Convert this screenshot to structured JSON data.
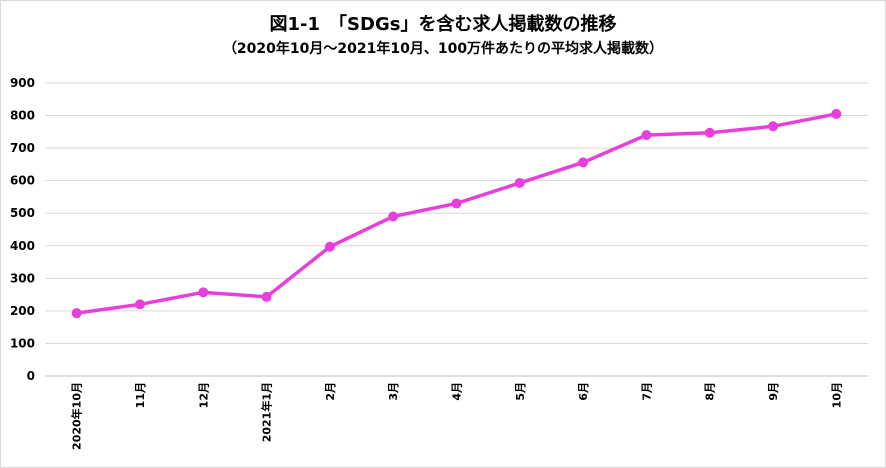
{
  "chart_data": {
    "type": "line",
    "title": "図1-1　「SDGs」を含む求人掲載数の推移",
    "subtitle": "（2020年10月～2021年10月、100万件あたりの平均求人掲載数）",
    "xlabel": "",
    "ylabel": "",
    "categories": [
      "2020年10月",
      "11月",
      "12月",
      "2021年1月",
      "2月",
      "3月",
      "4月",
      "5月",
      "6月",
      "7月",
      "8月",
      "9月",
      "10月"
    ],
    "series": [
      {
        "values": [
          193,
          220,
          257,
          243,
          397,
          490,
          530,
          593,
          656,
          740,
          747,
          767,
          805
        ]
      }
    ],
    "ylim": [
      0,
      900
    ],
    "yticks": [
      0,
      100,
      200,
      300,
      400,
      500,
      600,
      700,
      800,
      900
    ],
    "grid": true,
    "legend": "none",
    "colors": {
      "line": "#e83fdc",
      "grid": "#d9d9d9",
      "axis": "#bfbfbf"
    }
  }
}
